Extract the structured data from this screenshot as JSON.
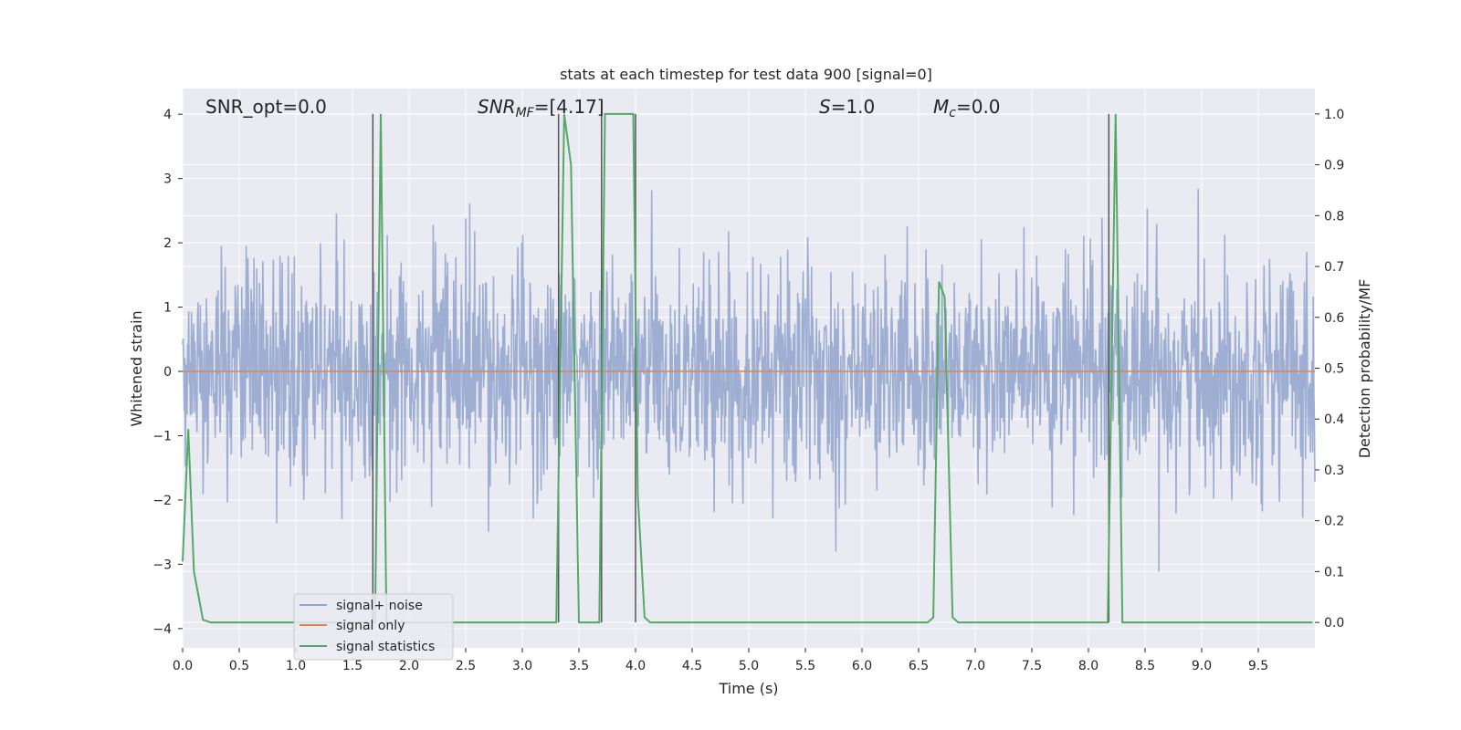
{
  "chart_data": {
    "type": "line",
    "title": "stats at each timestep for test data 900 [signal=0]",
    "xlabel": "Time (s)",
    "ylabel": "Whitened strain",
    "ylabel_right": "Detection probability/MF",
    "xlim": [
      0,
      10
    ],
    "ylim": [
      -4.3,
      4.4
    ],
    "ylim_right": [
      -0.05,
      1.05
    ],
    "x_ticks": [
      0.0,
      0.5,
      1.0,
      1.5,
      2.0,
      2.5,
      3.0,
      3.5,
      4.0,
      4.5,
      5.0,
      5.5,
      6.0,
      6.5,
      7.0,
      7.5,
      8.0,
      8.5,
      9.0,
      9.5
    ],
    "x_tick_labels": [
      "0.0",
      "0.5",
      "1.0",
      "1.5",
      "2.0",
      "2.5",
      "3.0",
      "3.5",
      "4.0",
      "4.5",
      "5.0",
      "5.5",
      "6.0",
      "6.5",
      "7.0",
      "7.5",
      "8.0",
      "8.5",
      "9.0",
      "9.5"
    ],
    "y_ticks": [
      -4,
      -3,
      -2,
      -1,
      0,
      1,
      2,
      3,
      4
    ],
    "y_tick_labels": [
      "−4",
      "−3",
      "−2",
      "−1",
      "0",
      "1",
      "2",
      "3",
      "4"
    ],
    "y_ticks_right": [
      0.0,
      0.1,
      0.2,
      0.3,
      0.4,
      0.5,
      0.6,
      0.7,
      0.8,
      0.9,
      1.0
    ],
    "y_tick_labels_right": [
      "0.0",
      "0.1",
      "0.2",
      "0.3",
      "0.4",
      "0.5",
      "0.6",
      "0.7",
      "0.8",
      "0.9",
      "1.0"
    ],
    "grid": true,
    "legend_position": "lower-left",
    "annotations": {
      "snr_opt": "SNR_opt=0.0",
      "snr_mf_base": "SNR",
      "snr_mf_sub": "MF",
      "snr_mf_value": "=[4.17]",
      "s_sym": "S",
      "s_value": "=1.0",
      "mc_sym": "M",
      "mc_sub": "c",
      "mc_value": "=0.0"
    },
    "vertical_lines_x": [
      1.68,
      3.32,
      3.7,
      4.0,
      8.18
    ],
    "series": [
      {
        "name": "signal+ noise",
        "color": "#8fa3cc",
        "axis": "left",
        "noise": {
          "sigma": 0.85,
          "samples": 2048,
          "spread_low": -3.8,
          "spread_high": 4.2
        }
      },
      {
        "name": "signal only",
        "color": "#dd8452",
        "axis": "left",
        "x": [
          0,
          10
        ],
        "y": [
          0,
          0
        ]
      },
      {
        "name": "signal statistics",
        "color": "#55a868",
        "axis": "right",
        "x": [
          0.0,
          0.05,
          0.1,
          0.18,
          0.25,
          1.66,
          1.7,
          1.75,
          1.8,
          1.85,
          3.3,
          3.37,
          3.43,
          3.5,
          3.68,
          3.73,
          3.98,
          4.02,
          4.08,
          4.13,
          6.58,
          6.63,
          6.68,
          6.73,
          6.8,
          6.85,
          8.17,
          8.24,
          8.3,
          9.98
        ],
        "y": [
          0.12,
          0.38,
          0.1,
          0.005,
          0.0,
          0.0,
          0.0,
          1.0,
          0.0,
          0.0,
          0.0,
          1.0,
          0.9,
          0.0,
          0.0,
          1.0,
          1.0,
          0.25,
          0.01,
          0.0,
          0.0,
          0.01,
          0.67,
          0.64,
          0.01,
          0.0,
          0.0,
          1.0,
          0.0,
          0.0
        ]
      }
    ]
  }
}
